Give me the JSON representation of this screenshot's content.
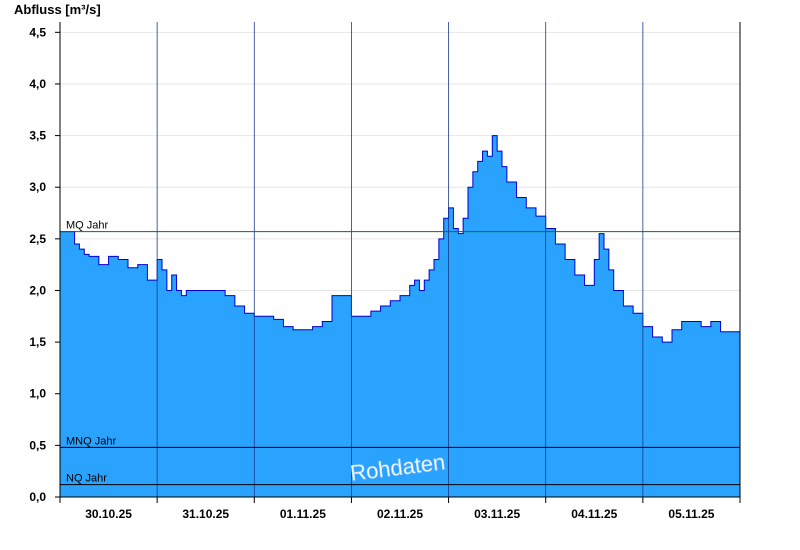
{
  "chart_data": {
    "type": "area",
    "ylabel": "Abfluss [m³/s]",
    "ylim": [
      0,
      4.6
    ],
    "yticks": [
      "0,0",
      "0,5",
      "1,0",
      "1,5",
      "2,0",
      "2,5",
      "3,0",
      "3,5",
      "4,0",
      "4,5"
    ],
    "ytick_values": [
      0,
      0.5,
      1.0,
      1.5,
      2.0,
      2.5,
      3.0,
      3.5,
      4.0,
      4.5
    ],
    "xlim": [
      0,
      7
    ],
    "xticks": [
      "30.10.25",
      "31.10.25",
      "01.11.25",
      "02.11.25",
      "03.11.25",
      "04.11.25",
      "05.11.25"
    ],
    "xtick_positions": [
      0.5,
      1.5,
      2.5,
      3.5,
      4.5,
      5.5,
      6.5
    ],
    "day_boundaries": [
      1,
      2,
      3,
      4,
      5,
      6
    ],
    "x_unit": "days since 30.10.25 00:00",
    "series": [
      {
        "color": "#29a3ff",
        "line_color": "#0000cc",
        "x": [
          0,
          0.1,
          0.15,
          0.2,
          0.25,
          0.3,
          0.35,
          0.4,
          0.5,
          0.6,
          0.7,
          0.8,
          0.9,
          1.0,
          1.05,
          1.1,
          1.15,
          1.2,
          1.25,
          1.3,
          1.35,
          1.4,
          1.45,
          1.5,
          1.6,
          1.7,
          1.8,
          1.9,
          2.0,
          2.1,
          2.2,
          2.3,
          2.4,
          2.5,
          2.6,
          2.7,
          2.8,
          2.9,
          3.0,
          3.1,
          3.2,
          3.3,
          3.4,
          3.5,
          3.6,
          3.65,
          3.7,
          3.75,
          3.8,
          3.85,
          3.9,
          3.95,
          4.0,
          4.05,
          4.1,
          4.15,
          4.2,
          4.25,
          4.3,
          4.35,
          4.4,
          4.45,
          4.5,
          4.55,
          4.6,
          4.7,
          4.8,
          4.9,
          5.0,
          5.1,
          5.2,
          5.3,
          5.4,
          5.5,
          5.55,
          5.6,
          5.65,
          5.7,
          5.8,
          5.9,
          6.0,
          6.1,
          6.2,
          6.3,
          6.4,
          6.5,
          6.6,
          6.7,
          6.8,
          6.9,
          7.0
        ],
        "y": [
          2.57,
          2.57,
          2.45,
          2.4,
          2.35,
          2.33,
          2.33,
          2.25,
          2.33,
          2.3,
          2.22,
          2.25,
          2.1,
          2.3,
          2.2,
          2.0,
          2.15,
          2.0,
          1.95,
          2.0,
          2.0,
          2.0,
          2.0,
          2.0,
          2.0,
          1.95,
          1.85,
          1.78,
          1.75,
          1.75,
          1.72,
          1.65,
          1.62,
          1.62,
          1.65,
          1.7,
          1.95,
          1.95,
          1.75,
          1.75,
          1.8,
          1.85,
          1.9,
          1.95,
          2.05,
          2.1,
          2.0,
          2.1,
          2.2,
          2.3,
          2.5,
          2.7,
          2.8,
          2.6,
          2.55,
          2.7,
          3.0,
          3.15,
          3.25,
          3.35,
          3.3,
          3.5,
          3.35,
          3.2,
          3.05,
          2.9,
          2.8,
          2.72,
          2.6,
          2.45,
          2.3,
          2.15,
          2.05,
          2.3,
          2.55,
          2.4,
          2.2,
          2.0,
          1.85,
          1.78,
          1.65,
          1.55,
          1.5,
          1.62,
          1.7,
          1.7,
          1.65,
          1.7,
          1.6,
          1.6,
          1.55
        ]
      }
    ],
    "reference_lines": [
      {
        "label": "MQ Jahr",
        "value": 2.57,
        "color": "#007a00"
      },
      {
        "label": "MNQ Jahr",
        "value": 0.48,
        "color": "#000000"
      },
      {
        "label": "NQ Jahr",
        "value": 0.12,
        "color": "#000000"
      }
    ],
    "grid": true,
    "legend": "none",
    "watermark": "Rohdaten"
  }
}
